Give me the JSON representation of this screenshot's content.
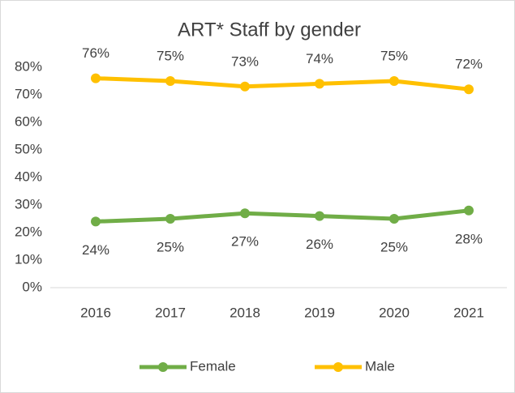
{
  "chart_data": {
    "type": "line",
    "title": "ART* Staff by gender",
    "categories": [
      "2016",
      "2017",
      "2018",
      "2019",
      "2020",
      "2021"
    ],
    "series": [
      {
        "name": "Female",
        "color": "#70ad47",
        "label_position": "below",
        "values": [
          24,
          25,
          27,
          26,
          25,
          28
        ],
        "value_labels": [
          "24%",
          "25%",
          "27%",
          "26%",
          "25%",
          "28%"
        ]
      },
      {
        "name": "Male",
        "color": "#ffc000",
        "label_position": "above",
        "values": [
          76,
          75,
          73,
          74,
          75,
          72
        ],
        "value_labels": [
          "76%",
          "75%",
          "73%",
          "74%",
          "75%",
          "72%"
        ]
      }
    ],
    "ylim": [
      0,
      80
    ],
    "yticks": [
      {
        "value": 0,
        "label": "0%"
      },
      {
        "value": 10,
        "label": "10%"
      },
      {
        "value": 20,
        "label": "20%"
      },
      {
        "value": 30,
        "label": "30%"
      },
      {
        "value": 40,
        "label": "40%"
      },
      {
        "value": 50,
        "label": "50%"
      },
      {
        "value": 60,
        "label": "60%"
      },
      {
        "value": 70,
        "label": "70%"
      },
      {
        "value": 80,
        "label": "80%"
      }
    ],
    "grid": false,
    "legend": "bottom"
  }
}
